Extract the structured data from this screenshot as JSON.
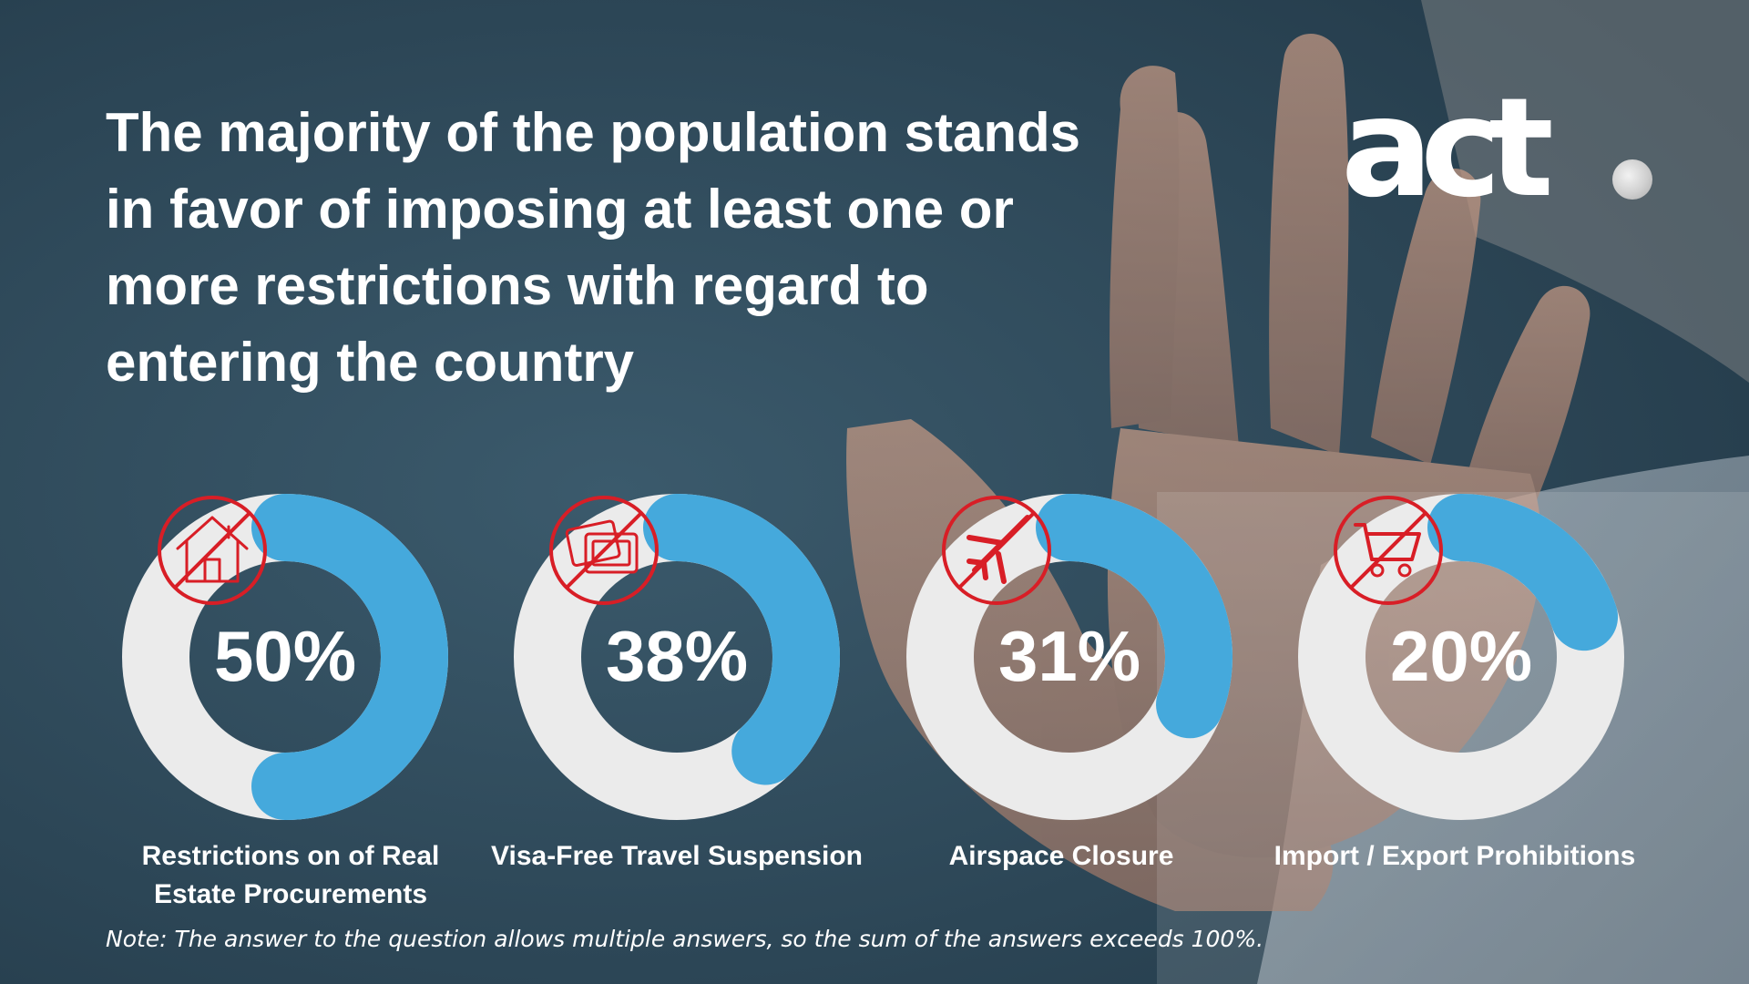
{
  "headline": "The majority of the population stands in favor of imposing at least one or more restrictions with regard to entering the country",
  "logo": {
    "text": "act"
  },
  "note": "Note: The answer to the question allows multiple answers, so the sum of the answers exceeds 100%.",
  "colors": {
    "background": "#2f4a5b",
    "track": "#ebebeb",
    "accent": "#45a9dc",
    "icon_red": "#d81e26",
    "text": "#ffffff"
  },
  "chart_data": {
    "type": "donut",
    "title": "The majority of the population stands in favor of imposing at least one or more restrictions with regard to entering the country",
    "unit": "%",
    "categories": [
      "Restrictions on of Real Estate Procurements",
      "Visa-Free Travel Suspension",
      "Airspace Closure",
      "Import / Export Prohibitions"
    ],
    "values": [
      50,
      38,
      31,
      20
    ],
    "value_labels": [
      "50%",
      "38%",
      "31%",
      "20%"
    ],
    "icons": [
      "no-house-icon",
      "no-passport-icon",
      "no-airplane-icon",
      "no-shopping-cart-icon"
    ]
  }
}
